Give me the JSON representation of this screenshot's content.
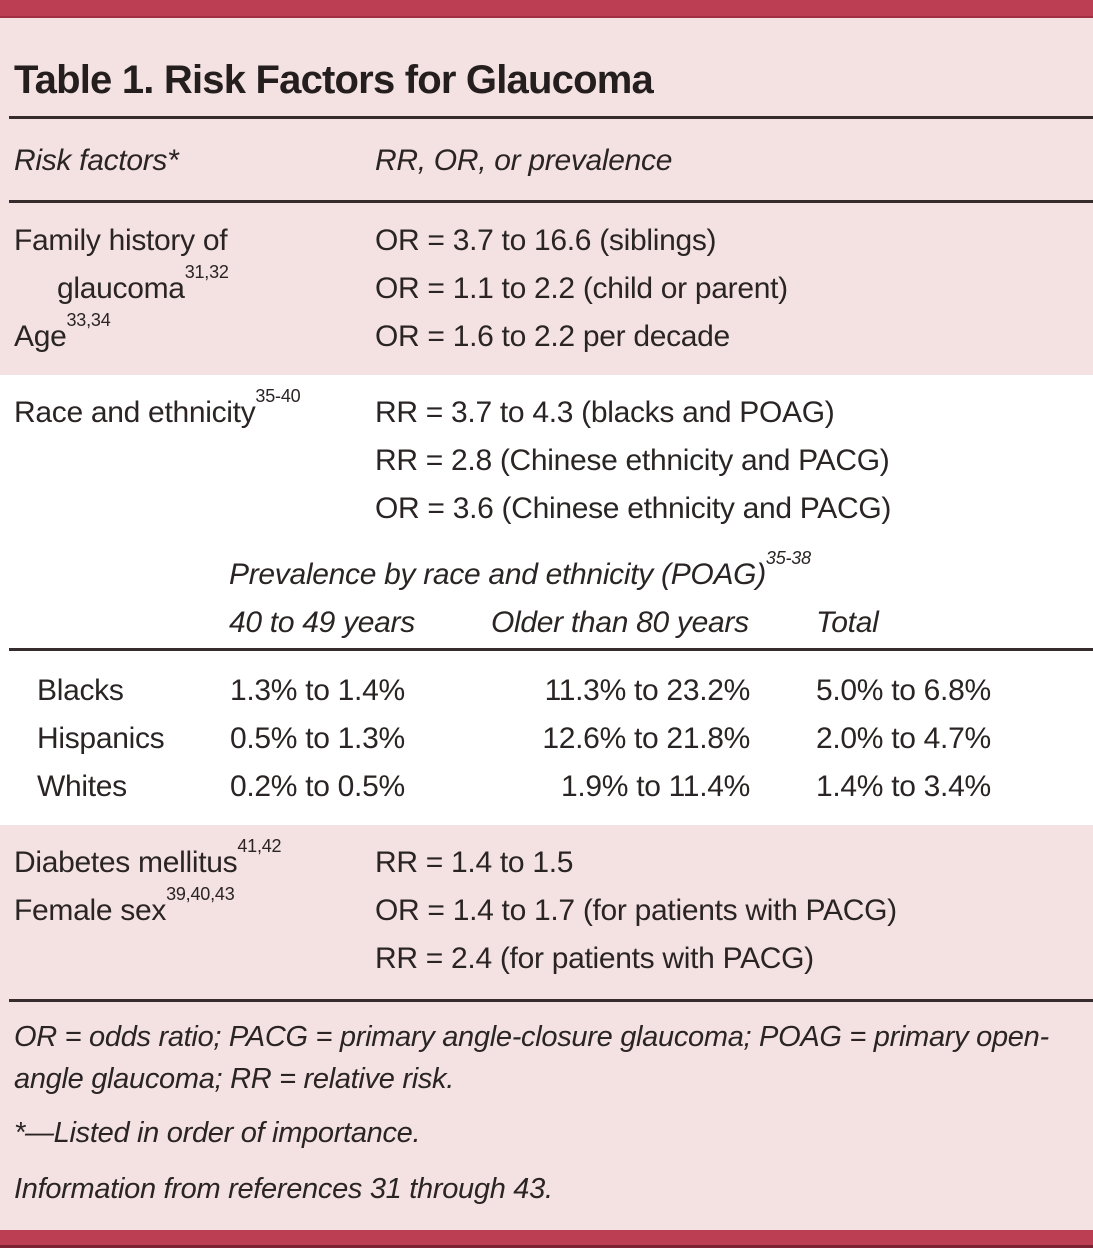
{
  "title": "Table 1. Risk Factors for Glaucoma",
  "header": {
    "risk_col": "Risk factors*",
    "value_col": "RR, OR, or prevalence"
  },
  "risk_sections": {
    "top": {
      "rows": [
        {
          "label": "Family history of",
          "sup": "",
          "value": "OR = 3.7 to 16.6 (siblings)"
        },
        {
          "label": "glaucoma",
          "sup": "31,32",
          "value": "OR = 1.1 to 2.2 (child or parent)"
        },
        {
          "label": "Age",
          "sup": "33,34",
          "value": "OR = 1.6 to 2.2 per decade"
        }
      ]
    },
    "middle": {
      "rows": [
        {
          "label": "Race and ethnicity",
          "sup": "35-40",
          "value": "RR = 3.7 to 4.3 (blacks and POAG)"
        },
        {
          "label": "",
          "sup": "",
          "value": "RR = 2.8 (Chinese ethnicity and PACG)"
        },
        {
          "label": "",
          "sup": "",
          "value": "OR = 3.6 (Chinese ethnicity and PACG)"
        }
      ]
    },
    "bottom": {
      "rows": [
        {
          "label": "Diabetes mellitus",
          "sup": "41,42",
          "value": "RR = 1.4 to 1.5"
        },
        {
          "label": "Female sex",
          "sup": "39,40,43",
          "value": "OR = 1.4 to 1.7 (for patients with PACG)"
        },
        {
          "label": "",
          "sup": "",
          "value": "RR = 2.4 (for patients with PACG)"
        }
      ]
    }
  },
  "prevalence": {
    "caption": "Prevalence by race and ethnicity (POAG)",
    "caption_sup": "35-38",
    "col_headers": [
      "40 to 49 years",
      "Older than 80 years",
      "Total"
    ],
    "rows": [
      {
        "race": "Blacks",
        "age_40_49": "1.3% to 1.4%",
        "over_80": "11.3% to 23.2%",
        "total": "5.0% to 6.8%"
      },
      {
        "race": "Hispanics",
        "age_40_49": "0.5% to 1.3%",
        "over_80": "12.6% to 21.8%",
        "total": "2.0% to 4.7%"
      },
      {
        "race": "Whites",
        "age_40_49": "0.2% to 0.5%",
        "over_80": "1.9% to 11.4%",
        "total": "1.4% to 3.4%"
      }
    ]
  },
  "footnotes": {
    "abbreviations_line1": "OR = odds ratio; PACG = primary angle-closure glaucoma; POAG = primary open-",
    "abbreviations_line2": "angle glaucoma; RR = relative risk.",
    "asterisk_note": "*—Listed in order of importance.",
    "source_note": "Information from references 31 through 43."
  },
  "colors": {
    "accent_bar": "#bc3e52",
    "section_pink": "#f4e2e2",
    "section_white": "#ffffff",
    "text": "#2a2424",
    "rule": "#362c2e"
  }
}
